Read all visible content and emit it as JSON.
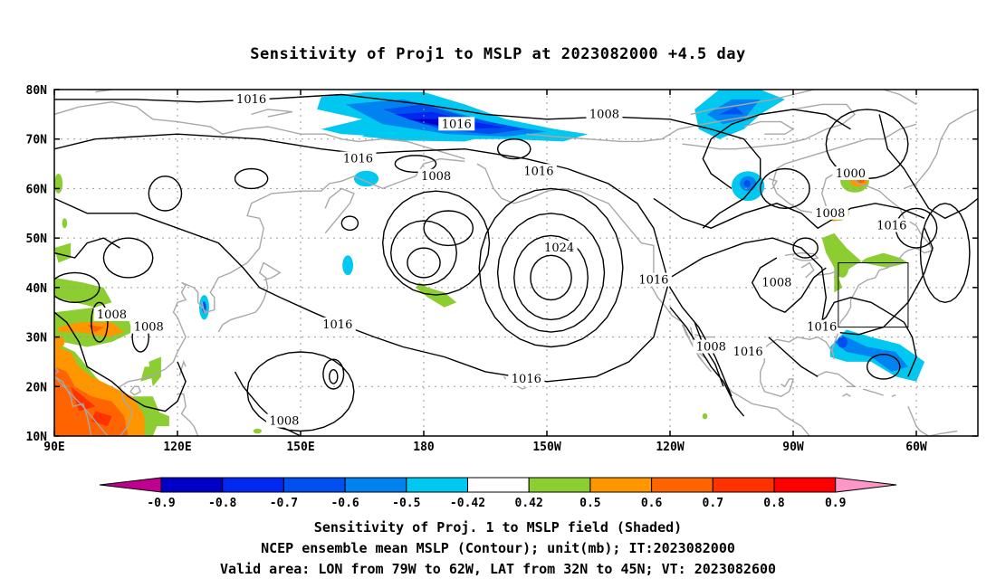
{
  "title": "Sensitivity of Proj1 to MSLP at 2023082000 +4.5 day",
  "map": {
    "lon_labels": [
      "90E",
      "120E",
      "150E",
      "180",
      "150W",
      "120W",
      "90W",
      "60W"
    ],
    "lat_labels": [
      "10N",
      "20N",
      "30N",
      "40N",
      "50N",
      "60N",
      "70N",
      "80N"
    ],
    "lon_range": [
      90,
      315
    ],
    "lat_range": [
      10,
      80
    ],
    "grid": "dotted",
    "valid_box": {
      "lon": [
        281,
        298
      ],
      "lat": [
        32,
        45
      ]
    },
    "contour_labels": [
      {
        "text": "1016",
        "lon": 138,
        "lat": 78
      },
      {
        "text": "1016",
        "lon": 188,
        "lat": 73
      },
      {
        "text": "1008",
        "lon": 224,
        "lat": 75
      },
      {
        "text": "1016",
        "lon": 164,
        "lat": 66
      },
      {
        "text": "1008",
        "lon": 183,
        "lat": 62.5
      },
      {
        "text": "1016",
        "lon": 208,
        "lat": 63.5
      },
      {
        "text": "1000",
        "lon": 284,
        "lat": 63
      },
      {
        "text": "1008",
        "lon": 279,
        "lat": 55
      },
      {
        "text": "1016",
        "lon": 294,
        "lat": 52.5
      },
      {
        "text": "1024",
        "lon": 213,
        "lat": 48
      },
      {
        "text": "1016",
        "lon": 236,
        "lat": 41.5
      },
      {
        "text": "1008",
        "lon": 266,
        "lat": 41
      },
      {
        "text": "1008",
        "lon": 104,
        "lat": 34.5
      },
      {
        "text": "1008",
        "lon": 113,
        "lat": 32
      },
      {
        "text": "1016",
        "lon": 159,
        "lat": 32.5
      },
      {
        "text": "1016",
        "lon": 277,
        "lat": 32
      },
      {
        "text": "1008",
        "lon": 250,
        "lat": 28
      },
      {
        "text": "1016",
        "lon": 259,
        "lat": 27
      },
      {
        "text": "1016",
        "lon": 205,
        "lat": 21.5
      },
      {
        "text": "1008",
        "lon": 146,
        "lat": 13
      }
    ]
  },
  "colorbar": {
    "labels": [
      "-0.9",
      "-0.8",
      "-0.7",
      "-0.6",
      "-0.5",
      "-0.42",
      "0.42",
      "0.5",
      "0.6",
      "0.7",
      "0.8",
      "0.9"
    ],
    "colors": [
      "#bf008f",
      "#0000c8",
      "#0028f0",
      "#0050f0",
      "#0082f0",
      "#00c8f0",
      "#ffffff",
      "#8ccd32",
      "#ff9600",
      "#ff6400",
      "#ff3200",
      "#ff0000",
      "#ff96c8"
    ]
  },
  "captions": [
    "Sensitivity of Proj. 1 to MSLP field (Shaded)",
    "NCEP ensemble mean MSLP (Contour); unit(mb); IT:2023082000",
    "Valid area: LON from 79W to 62W, LAT from 32N to 45N; VT: 2023082600"
  ]
}
